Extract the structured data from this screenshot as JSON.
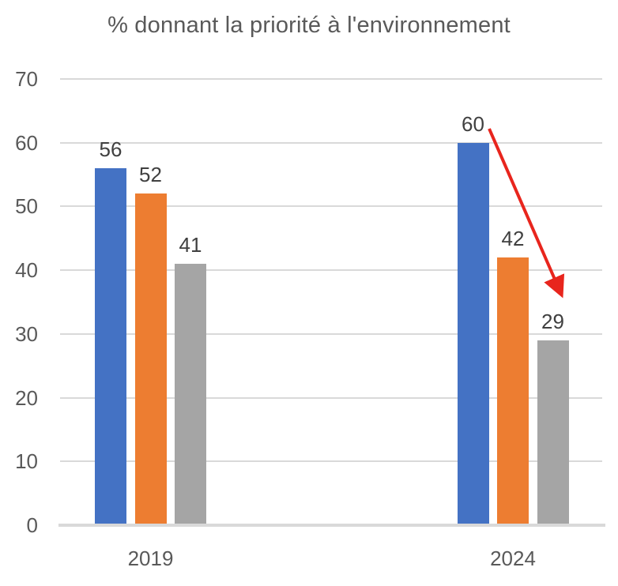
{
  "chart_data": {
    "type": "bar",
    "title": "% donnant la priorité à l'environnement",
    "categories": [
      "2019",
      "2024"
    ],
    "series": [
      {
        "name": "series-1-blue",
        "color": "#4472C4",
        "values": [
          56,
          60
        ]
      },
      {
        "name": "series-2-orange",
        "color": "#ED7D31",
        "values": [
          52,
          42
        ]
      },
      {
        "name": "series-3-gray",
        "color": "#A5A5A5",
        "values": [
          41,
          29
        ]
      }
    ],
    "data_labels": [
      "56",
      "52",
      "41",
      "60",
      "42",
      "29"
    ],
    "xlabel": "",
    "ylabel": "",
    "ylim": [
      0,
      70
    ],
    "yticks": [
      0,
      10,
      20,
      30,
      40,
      50,
      60,
      70
    ],
    "grid": true,
    "legend": "none",
    "annotation": {
      "type": "arrow",
      "color": "#E8251D",
      "from_label": "60",
      "to_label": "29"
    },
    "axis_color": "#D9D9D9",
    "gridline_color": "#D9D9D9",
    "title_color": "#595959",
    "tick_label_color": "#595959",
    "data_label_color": "#404040"
  }
}
